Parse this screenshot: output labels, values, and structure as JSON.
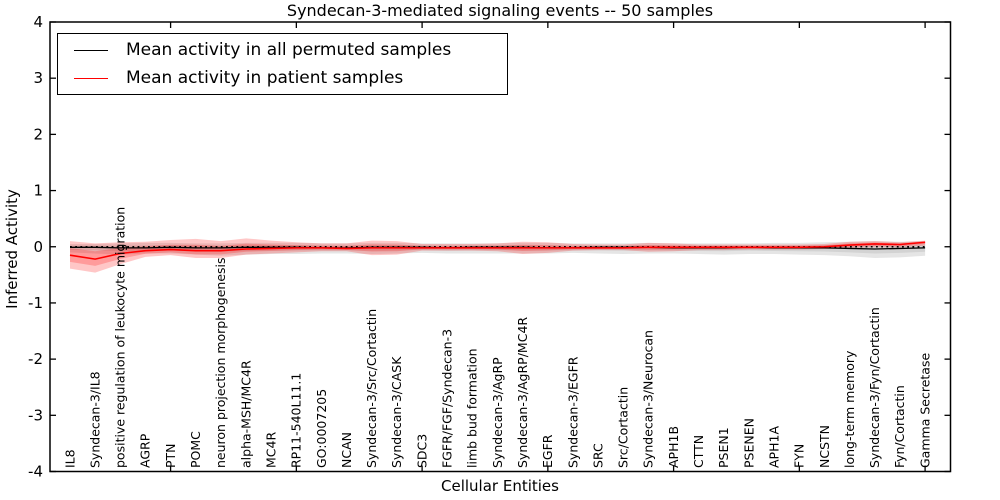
{
  "window": {
    "title": "Syndecan-3-mediated signaling events -- 50 samples"
  },
  "colors": {
    "permuted_line": "#000000",
    "permuted_band": "#aaaaaa",
    "patient_line": "#ff0000",
    "patient_band": "#ff0000",
    "zero_line": "#000000",
    "frame": "#000000",
    "background": "#ffffff"
  },
  "chart_data": {
    "type": "line",
    "title": "Syndecan-3-mediated signaling events -- 50 samples",
    "xlabel": "Cellular Entities",
    "ylabel": "Inferred Activity",
    "ylim": [
      -4,
      4
    ],
    "yticks": [
      4,
      3,
      2,
      1,
      0,
      -1,
      -2,
      -3,
      -4
    ],
    "ytick_labels": [
      "4",
      "3",
      "2",
      "1",
      "0",
      "-1",
      "-2",
      "-3",
      "-4"
    ],
    "xtick_indices": [
      4,
      9,
      14,
      19,
      24,
      29,
      34
    ],
    "grid": false,
    "zero_line_style": "dotted",
    "legend_position": "upper left",
    "categories": [
      "IL8",
      "Syndecan-3/IL8",
      "positive regulation of leukocyte migration",
      "AGRP",
      "PTN",
      "POMC",
      "neuron projection morphogenesis",
      "alpha-MSH/MC4R",
      "MC4R",
      "RP11-540L11.1",
      "GO:0007205",
      "NCAN",
      "Syndecan-3/Src/Cortactin",
      "Syndecan-3/CASK",
      "SDC3",
      "FGFR/FGF/Syndecan-3",
      "limb bud formation",
      "Syndecan-3/AgRP",
      "Syndecan-3/AgRP/MC4R",
      "EGFR",
      "Syndecan-3/EGFR",
      "SRC",
      "Src/Cortactin",
      "Syndecan-3/Neurocan",
      "APH1B",
      "CTTN",
      "PSEN1",
      "PSENEN",
      "APH1A",
      "FYN",
      "NCSTN",
      "long-term memory",
      "Syndecan-3/Fyn/Cortactin",
      "Fyn/Cortactin",
      "Gamma Secretase"
    ],
    "series": [
      {
        "name": "Mean activity in all permuted samples",
        "color": "#000000",
        "band_color": "#aaaaaa",
        "mean": [
          -0.01,
          -0.01,
          -0.02,
          -0.02,
          -0.01,
          -0.02,
          -0.02,
          -0.01,
          -0.01,
          -0.01,
          -0.02,
          -0.02,
          -0.01,
          -0.01,
          -0.01,
          -0.02,
          -0.01,
          -0.01,
          -0.01,
          -0.02,
          -0.02,
          -0.01,
          -0.01,
          -0.01,
          -0.02,
          -0.02,
          -0.02,
          -0.01,
          -0.02,
          -0.02,
          -0.02,
          -0.03,
          -0.04,
          -0.03,
          -0.02
        ],
        "upper": [
          0.05,
          0.05,
          0.06,
          0.07,
          0.07,
          0.06,
          0.06,
          0.07,
          0.07,
          0.07,
          0.06,
          0.06,
          0.07,
          0.07,
          0.06,
          0.06,
          0.06,
          0.06,
          0.07,
          0.07,
          0.06,
          0.06,
          0.06,
          0.07,
          0.06,
          0.06,
          0.06,
          0.06,
          0.07,
          0.07,
          0.08,
          0.09,
          0.1,
          0.09,
          0.1
        ],
        "lower": [
          -0.1,
          -0.12,
          -0.14,
          -0.12,
          -0.12,
          -0.14,
          -0.16,
          -0.14,
          -0.13,
          -0.13,
          -0.12,
          -0.12,
          -0.13,
          -0.12,
          -0.11,
          -0.12,
          -0.12,
          -0.12,
          -0.12,
          -0.12,
          -0.11,
          -0.12,
          -0.13,
          -0.12,
          -0.12,
          -0.13,
          -0.14,
          -0.13,
          -0.13,
          -0.14,
          -0.15,
          -0.17,
          -0.2,
          -0.19,
          -0.16
        ]
      },
      {
        "name": "Mean activity in patient samples",
        "color": "#ff0000",
        "band_color": "#ff0000",
        "mean": [
          -0.15,
          -0.22,
          -0.12,
          -0.07,
          -0.05,
          -0.07,
          -0.07,
          -0.04,
          -0.03,
          -0.02,
          -0.02,
          -0.03,
          -0.02,
          -0.02,
          -0.02,
          -0.02,
          -0.02,
          -0.02,
          -0.02,
          -0.02,
          -0.02,
          -0.02,
          -0.02,
          -0.01,
          -0.01,
          -0.01,
          -0.01,
          -0.01,
          -0.01,
          -0.01,
          0.0,
          0.03,
          0.05,
          0.04,
          0.08
        ],
        "upper": [
          0.1,
          0.06,
          0.08,
          0.09,
          0.12,
          0.14,
          0.1,
          0.15,
          0.11,
          0.08,
          0.06,
          0.06,
          0.11,
          0.1,
          0.05,
          0.05,
          0.05,
          0.06,
          0.09,
          0.08,
          0.05,
          0.04,
          0.04,
          0.07,
          0.06,
          0.04,
          0.04,
          0.04,
          0.04,
          0.04,
          0.05,
          0.09,
          0.1,
          0.08,
          0.11
        ],
        "lower": [
          -0.39,
          -0.46,
          -0.31,
          -0.18,
          -0.15,
          -0.2,
          -0.2,
          -0.14,
          -0.12,
          -0.1,
          -0.08,
          -0.08,
          -0.15,
          -0.14,
          -0.07,
          -0.07,
          -0.07,
          -0.08,
          -0.13,
          -0.11,
          -0.07,
          -0.06,
          -0.06,
          -0.09,
          -0.08,
          -0.06,
          -0.06,
          -0.05,
          -0.05,
          -0.05,
          -0.04,
          -0.02,
          -0.01,
          -0.01,
          0.02
        ]
      }
    ]
  },
  "legend": {
    "entries": [
      {
        "label": "Mean activity in all permuted samples",
        "swatch": "black-line"
      },
      {
        "label": "Mean activity in patient samples",
        "swatch": "red-line"
      }
    ]
  }
}
